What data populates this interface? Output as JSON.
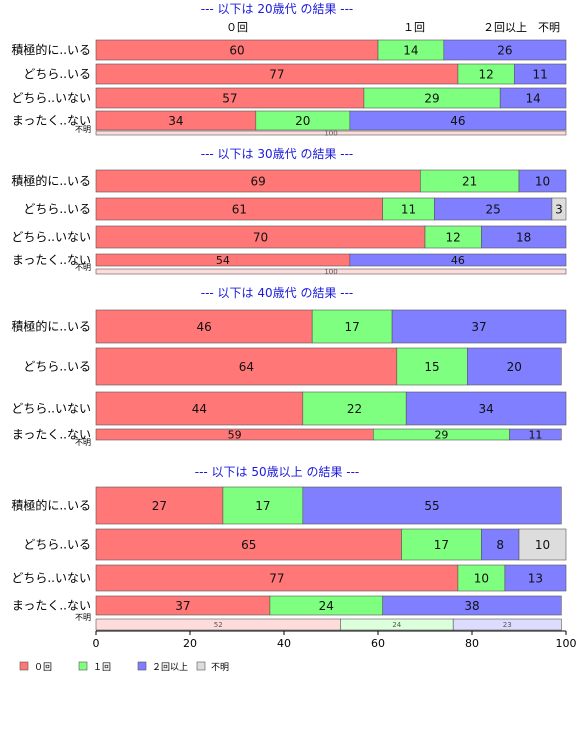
{
  "chart_data": {
    "type": "bar",
    "orientation": "horizontal",
    "stacked": true,
    "xlim": [
      0,
      100
    ],
    "x_ticks": [
      "0",
      "20",
      "40",
      "60",
      "80",
      "100"
    ],
    "grid": false,
    "legend_position": "bottom-left",
    "header_labels": [
      "０回",
      "１回",
      "２回以上",
      "不明"
    ],
    "series": [
      {
        "name": "０回",
        "color": "#ff7777"
      },
      {
        "name": "１回",
        "color": "#7fff7f"
      },
      {
        "name": "２回以上",
        "color": "#7f7fff"
      },
      {
        "name": "不明",
        "color": "#dddddd"
      }
    ],
    "groups": [
      {
        "title": "--- 以下は 20歳代 の結果 ---",
        "rows": [
          {
            "label": "積極的に..いる",
            "values": [
              60,
              14,
              26,
              0
            ]
          },
          {
            "label": "どちら..いる",
            "values": [
              77,
              12,
              11,
              0
            ]
          },
          {
            "label": "どちら..いない",
            "values": [
              57,
              29,
              14,
              0
            ]
          },
          {
            "label": "まったく..ない",
            "values": [
              34,
              20,
              46,
              0
            ]
          },
          {
            "label": "不明",
            "values": [
              100,
              0,
              0,
              0
            ]
          }
        ]
      },
      {
        "title": "--- 以下は 30歳代 の結果 ---",
        "rows": [
          {
            "label": "積極的に..いる",
            "values": [
              69,
              21,
              10,
              0
            ]
          },
          {
            "label": "どちら..いる",
            "values": [
              61,
              11,
              25,
              3
            ]
          },
          {
            "label": "どちら..いない",
            "values": [
              70,
              12,
              18,
              0
            ]
          },
          {
            "label": "まったく..ない",
            "values": [
              54,
              0,
              46,
              0
            ]
          },
          {
            "label": "不明",
            "values": [
              100,
              0,
              0,
              0
            ]
          }
        ]
      },
      {
        "title": "--- 以下は 40歳代 の結果 ---",
        "rows": [
          {
            "label": "積極的に..いる",
            "values": [
              46,
              17,
              37,
              0
            ]
          },
          {
            "label": "どちら..いる",
            "values": [
              64,
              15,
              20,
              0
            ]
          },
          {
            "label": "どちら..いない",
            "values": [
              44,
              22,
              34,
              0
            ]
          },
          {
            "label": "まったく..ない",
            "values": [
              59,
              29,
              11,
              0
            ]
          },
          {
            "label": "不明",
            "values": [
              0,
              0,
              0,
              0
            ]
          }
        ]
      },
      {
        "title": "--- 以下は 50歳以上 の結果 ---",
        "rows": [
          {
            "label": "積極的に..いる",
            "values": [
              27,
              17,
              55,
              0
            ]
          },
          {
            "label": "どちら..いる",
            "values": [
              65,
              17,
              8,
              10
            ]
          },
          {
            "label": "どちら..いない",
            "values": [
              77,
              10,
              13,
              0
            ]
          },
          {
            "label": "まったく..ない",
            "values": [
              37,
              24,
              38,
              0
            ]
          },
          {
            "label": "不明",
            "values": [
              52,
              24,
              23,
              0
            ]
          }
        ]
      }
    ]
  }
}
